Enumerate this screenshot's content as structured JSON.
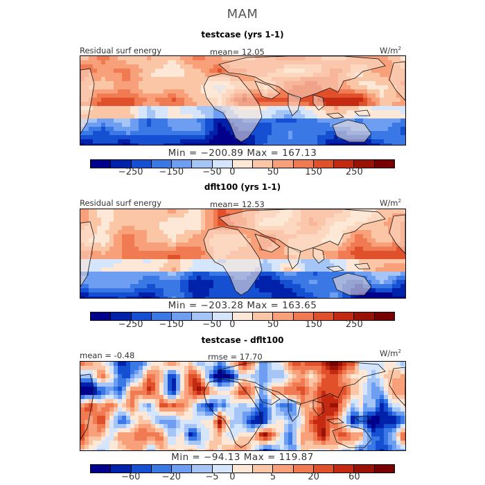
{
  "suptitle": "MAM",
  "palette": {
    "cool": [
      "#00008c",
      "#0022aa",
      "#1550d2",
      "#3a78e6",
      "#6d9ef2",
      "#a5c5f6",
      "#d5e5fb"
    ],
    "warm": [
      "#fde7d6",
      "#fbc6a6",
      "#f7a07a",
      "#f07a52",
      "#e0502a",
      "#c42a12",
      "#9a1206",
      "#780000"
    ],
    "land_outline": "#111111"
  },
  "chart_data": [
    {
      "type": "heatmap",
      "title": "testcase (yrs 1-1)",
      "field_label": "Residual surf energy",
      "mean_text": "mean=  12.05",
      "units_text": "W/m",
      "units_sup": "2",
      "min_max_text": "Min = −200.89  Max = 167.13",
      "colorbar_ticks": [
        "−250",
        "−150",
        "−50",
        "0",
        "50",
        "150",
        "250"
      ],
      "mean": 12.05,
      "min": -200.89,
      "max": 167.13,
      "seed": 3
    },
    {
      "type": "heatmap",
      "title": "dflt100 (yrs 1-1)",
      "field_label": "Residual surf energy",
      "mean_text": "mean=  12.53",
      "units_text": "W/m",
      "units_sup": "2",
      "min_max_text": "Min = −203.28  Max = 163.65",
      "colorbar_ticks": [
        "−250",
        "−150",
        "−50",
        "0",
        "50",
        "150",
        "250"
      ],
      "mean": 12.53,
      "min": -203.28,
      "max": 163.65,
      "seed": 7
    },
    {
      "type": "heatmap",
      "title": "testcase - dflt100",
      "mean_text": "mean =  -0.48",
      "rmse_text": "rmse =   17.70",
      "units_text": "W/m",
      "units_sup": "2",
      "min_max_text": "Min = −94.13  Max = 119.87",
      "colorbar_ticks": [
        "−60",
        "−20",
        "−5",
        "0",
        "5",
        "20",
        "60"
      ],
      "mean": -0.48,
      "rmse": 17.7,
      "min": -94.13,
      "max": 119.87,
      "seed": 11
    }
  ]
}
